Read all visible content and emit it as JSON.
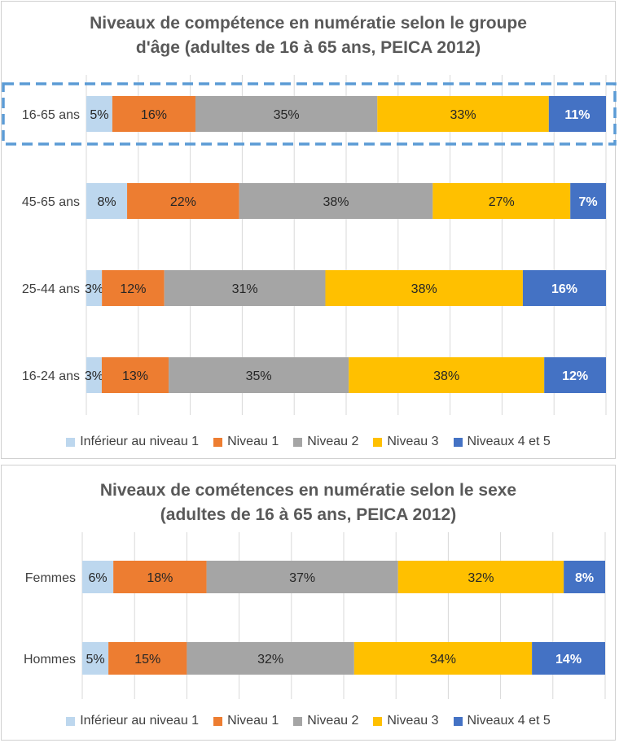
{
  "colors": {
    "below1": "#bdd7ee",
    "level1": "#ed7d31",
    "level2": "#a5a5a5",
    "level3": "#ffc000",
    "level45": "#4472c4",
    "highlight": "#5b9bd5",
    "grid": "#d9d9d9",
    "label": "#404040",
    "title": "#595959"
  },
  "chart_data": [
    {
      "type": "bar",
      "stacked": true,
      "orientation": "horizontal",
      "percent_stacked": true,
      "title_lines": [
        "Niveaux de compétence en numératie selon le groupe",
        "d'âge (adultes de 16 à 65 ans, PEICA 2012)"
      ],
      "categories": [
        "16-65 ans",
        "45-65 ans",
        "25-44 ans",
        "16-24 ans"
      ],
      "highlighted_category": "16-65 ans",
      "series": [
        {
          "name": "Inférieur au niveau 1",
          "values": [
            5,
            8,
            3,
            3
          ],
          "labels": [
            "5%",
            "8%",
            "3%",
            "3%"
          ],
          "color_key": "below1"
        },
        {
          "name": "Niveau 1",
          "values": [
            16,
            22,
            12,
            13
          ],
          "labels": [
            "16%",
            "22%",
            "12%",
            "13%"
          ],
          "color_key": "level1"
        },
        {
          "name": "Niveau 2",
          "values": [
            35,
            38,
            31,
            35
          ],
          "labels": [
            "35%",
            "38%",
            "31%",
            "35%"
          ],
          "color_key": "level2"
        },
        {
          "name": "Niveau 3",
          "values": [
            33,
            27,
            38,
            38
          ],
          "labels": [
            "33%",
            "27%",
            "38%",
            "38%"
          ],
          "color_key": "level3"
        },
        {
          "name": "Niveaux 4 et 5",
          "values": [
            11,
            7,
            16,
            12
          ],
          "labels": [
            "11%",
            "7%",
            "16%",
            "12%"
          ],
          "color_key": "level45"
        }
      ],
      "grid": true,
      "legend_position": "bottom"
    },
    {
      "type": "bar",
      "stacked": true,
      "orientation": "horizontal",
      "percent_stacked": true,
      "title_lines": [
        "Niveaux de cométences en numératie selon le sexe",
        "(adultes de 16 à 65 ans, PEICA 2012)"
      ],
      "categories": [
        "Femmes",
        "Hommes"
      ],
      "series": [
        {
          "name": "Inférieur au niveau 1",
          "values": [
            6,
            5
          ],
          "labels": [
            "6%",
            "5%"
          ],
          "color_key": "below1"
        },
        {
          "name": "Niveau 1",
          "values": [
            18,
            15
          ],
          "labels": [
            "18%",
            "15%"
          ],
          "color_key": "level1"
        },
        {
          "name": "Niveau 2",
          "values": [
            37,
            32
          ],
          "labels": [
            "37%",
            "32%"
          ],
          "color_key": "level2"
        },
        {
          "name": "Niveau 3",
          "values": [
            32,
            34
          ],
          "labels": [
            "32%",
            "34%"
          ],
          "color_key": "level3"
        },
        {
          "name": "Niveaux 4 et 5",
          "values": [
            8,
            14
          ],
          "labels": [
            "8%",
            "14%"
          ],
          "color_key": "level45"
        }
      ],
      "grid": true,
      "legend_position": "bottom"
    }
  ]
}
